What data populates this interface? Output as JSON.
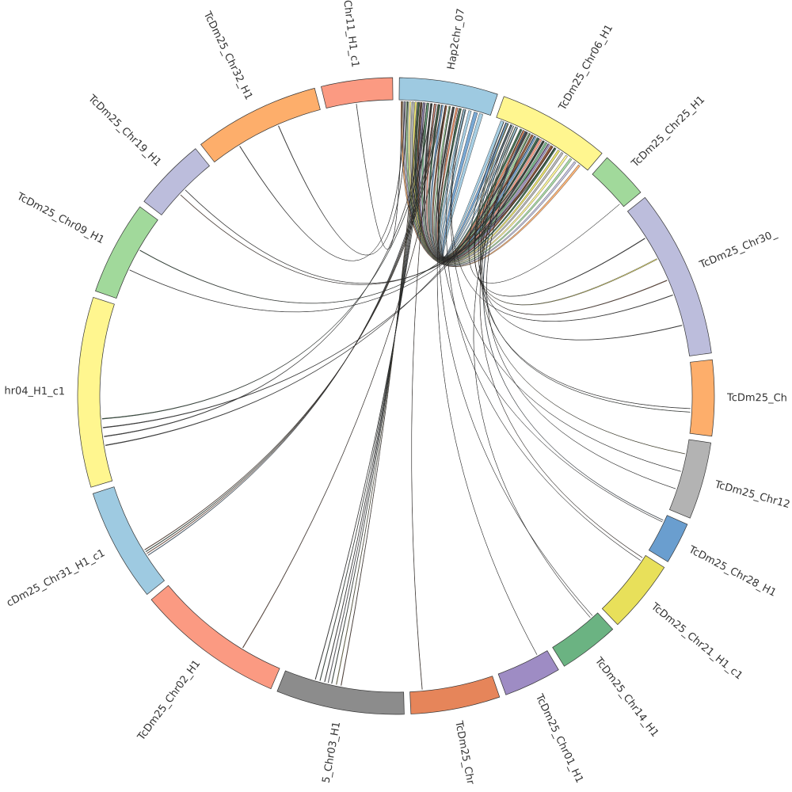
{
  "chart_data": {
    "type": "chord",
    "title": "",
    "sectors": [
      {
        "label": "Hap2chr_07",
        "length": 18,
        "color": "#9ecae1"
      },
      {
        "label": "TcDm25_Chr06_H1",
        "length": 20.5,
        "color": "#fff68f"
      },
      {
        "label": "TcDm25_Chr25_H1",
        "length": 8.7,
        "color": "#a1d99b"
      },
      {
        "label": "TcDm25_Chr30_",
        "length": 30.8,
        "color": "#bcbddc"
      },
      {
        "label": "TcDm25_Ch",
        "length": 13.8,
        "color": "#fdae6b"
      },
      {
        "label": "TcDm25_Chr12",
        "length": 14.1,
        "color": "#b3b3b3"
      },
      {
        "label": "TcDm25_Chr28_H1",
        "length": 7.6,
        "color": "#6a9ecf"
      },
      {
        "label": "TcDm25_Chr21_H1_c1",
        "length": 13.3,
        "color": "#e8e05a"
      },
      {
        "label": "TcDm25_Chr14_H1",
        "length": 11,
        "color": "#6bb382"
      },
      {
        "label": "TcDm25_Chr01_H1",
        "length": 10.5,
        "color": "#9e8cc4"
      },
      {
        "label": "TcDm25_Chr",
        "length": 16.3,
        "color": "#e6855a"
      },
      {
        "label": "5_Chr03_H1",
        "length": 23.4,
        "color": "#8c8c8c"
      },
      {
        "label": "TcDm25_Chr02_H1",
        "length": 27.1,
        "color": "#fb9a82"
      },
      {
        "label": "cDm25_Chr31_H1_c1",
        "length": 20.7,
        "color": "#9ecae1"
      },
      {
        "label": "hr04_H1_c1",
        "length": 34.7,
        "color": "#fff68f"
      },
      {
        "label": "TcDm25_Chr09_H1",
        "length": 17.2,
        "color": "#a1d99b"
      },
      {
        "label": "TcDm25_Chr19_H1",
        "length": 13.3,
        "color": "#bcbddc"
      },
      {
        "label": "TcDm25_Chr32_H1",
        "length": 23,
        "color": "#fdae6b"
      },
      {
        "label": "Chr11_H1_c1",
        "length": 13,
        "color": "#fb9a82"
      }
    ],
    "link_colors": [
      "#9ecae1",
      "#fff68f",
      "#a1d99b",
      "#bcbddc",
      "#fdae6b",
      "#b3b3b3",
      "#6a9ecf",
      "#e8e05a",
      "#6bb382",
      "#9e8cc4",
      "#e6855a",
      "#8c8c8c",
      "#fb9a82",
      "#2f5f3f",
      "#8b4a2a",
      "#333333"
    ],
    "links_format": [
      "source_sector",
      "source_pos",
      "source_width",
      "target_sector",
      "target_pos",
      "target_width",
      "color_index"
    ],
    "links": [
      [
        0,
        0.02,
        0.02,
        1,
        0.9,
        0.02,
        4
      ],
      [
        0,
        0.05,
        0.02,
        1,
        0.85,
        0.02,
        3
      ],
      [
        0,
        0.08,
        0.02,
        1,
        0.8,
        0.02,
        2
      ],
      [
        0,
        0.11,
        0.02,
        1,
        0.75,
        0.02,
        1
      ],
      [
        0,
        0.14,
        0.02,
        1,
        0.7,
        0.02,
        5
      ],
      [
        0,
        0.17,
        0.02,
        1,
        0.66,
        0.02,
        7
      ],
      [
        0,
        0.2,
        0.02,
        1,
        0.62,
        0.02,
        13
      ],
      [
        0,
        0.23,
        0.02,
        1,
        0.58,
        0.02,
        14
      ],
      [
        0,
        0.26,
        0.02,
        1,
        0.55,
        0.02,
        9
      ],
      [
        0,
        0.3,
        0.02,
        1,
        0.52,
        0.02,
        8
      ],
      [
        0,
        0.34,
        0.02,
        1,
        0.49,
        0.02,
        15
      ],
      [
        0,
        0.38,
        0.02,
        1,
        0.46,
        0.02,
        12
      ],
      [
        0,
        0.42,
        0.02,
        1,
        0.43,
        0.02,
        13
      ],
      [
        0,
        0.46,
        0.02,
        1,
        0.4,
        0.02,
        6
      ],
      [
        0,
        0.5,
        0.02,
        1,
        0.37,
        0.02,
        14
      ],
      [
        0,
        0.54,
        0.02,
        1,
        0.34,
        0.02,
        2
      ],
      [
        0,
        0.58,
        0.02,
        1,
        0.31,
        0.02,
        15
      ],
      [
        0,
        0.62,
        0.02,
        1,
        0.28,
        0.02,
        10
      ],
      [
        0,
        0.66,
        0.02,
        1,
        0.25,
        0.02,
        13
      ],
      [
        0,
        0.7,
        0.03,
        1,
        0.2,
        0.02,
        0
      ],
      [
        0,
        0.76,
        0.03,
        1,
        0.15,
        0.02,
        0
      ],
      [
        0,
        0.82,
        0.04,
        1,
        0.1,
        0.03,
        6
      ],
      [
        0,
        0.88,
        0.04,
        1,
        0.05,
        0.03,
        0
      ],
      [
        18,
        0.45,
        0.004,
        0,
        0.03,
        0.004,
        15
      ],
      [
        17,
        0.25,
        0.004,
        0,
        0.06,
        0.004,
        15
      ],
      [
        17,
        0.62,
        0.004,
        0,
        0.09,
        0.004,
        15
      ],
      [
        16,
        0.4,
        0.006,
        1,
        0.6,
        0.006,
        14
      ],
      [
        16,
        0.5,
        0.006,
        1,
        0.62,
        0.006,
        15
      ],
      [
        15,
        0.35,
        0.004,
        1,
        0.55,
        0.004,
        15
      ],
      [
        15,
        0.6,
        0.006,
        1,
        0.5,
        0.006,
        13
      ],
      [
        14,
        0.2,
        0.004,
        1,
        0.4,
        0.004,
        15
      ],
      [
        14,
        0.25,
        0.004,
        0,
        0.3,
        0.004,
        15
      ],
      [
        14,
        0.3,
        0.004,
        1,
        0.45,
        0.004,
        15
      ],
      [
        14,
        0.35,
        0.004,
        0,
        0.35,
        0.004,
        13
      ],
      [
        13,
        0.28,
        0.005,
        0,
        0.4,
        0.005,
        6
      ],
      [
        13,
        0.3,
        0.005,
        0,
        0.42,
        0.005,
        10
      ],
      [
        13,
        0.32,
        0.005,
        0,
        0.44,
        0.005,
        13
      ],
      [
        13,
        0.34,
        0.005,
        0,
        0.46,
        0.005,
        14
      ],
      [
        12,
        0.3,
        0.004,
        0,
        0.5,
        0.004,
        14
      ],
      [
        11,
        0.52,
        0.004,
        0,
        0.2,
        0.004,
        14
      ],
      [
        11,
        0.56,
        0.004,
        0,
        0.22,
        0.004,
        7
      ],
      [
        11,
        0.6,
        0.004,
        0,
        0.24,
        0.004,
        13
      ],
      [
        11,
        0.63,
        0.004,
        0,
        0.26,
        0.004,
        3
      ],
      [
        11,
        0.66,
        0.004,
        0,
        0.28,
        0.004,
        15
      ],
      [
        11,
        0.7,
        0.004,
        0,
        0.3,
        0.004,
        13
      ],
      [
        11,
        0.74,
        0.004,
        0,
        0.32,
        0.004,
        15
      ],
      [
        10,
        0.85,
        0.004,
        0,
        0.38,
        0.004,
        14
      ],
      [
        9,
        0.2,
        0.003,
        0,
        0.6,
        0.003,
        15
      ],
      [
        8,
        0.1,
        0.003,
        0,
        0.55,
        0.003,
        15
      ],
      [
        8,
        0.15,
        0.003,
        1,
        0.3,
        0.003,
        15
      ],
      [
        7,
        0.05,
        0.004,
        1,
        0.28,
        0.004,
        14
      ],
      [
        7,
        0.1,
        0.003,
        0,
        0.65,
        0.003,
        15
      ],
      [
        6,
        0.15,
        0.008,
        1,
        0.3,
        0.008,
        6
      ],
      [
        6,
        0.2,
        0.004,
        0,
        0.5,
        0.004,
        15
      ],
      [
        5,
        0.2,
        0.004,
        1,
        0.2,
        0.004,
        7
      ],
      [
        5,
        0.45,
        0.003,
        0,
        0.7,
        0.003,
        15
      ],
      [
        5,
        0.7,
        0.003,
        1,
        0.35,
        0.003,
        15
      ],
      [
        4,
        0.65,
        0.004,
        1,
        0.18,
        0.004,
        15
      ],
      [
        4,
        0.7,
        0.004,
        1,
        0.22,
        0.004,
        13
      ],
      [
        3,
        0.2,
        0.004,
        1,
        0.15,
        0.004,
        15
      ],
      [
        3,
        0.35,
        0.006,
        1,
        0.12,
        0.006,
        7
      ],
      [
        3,
        0.5,
        0.004,
        1,
        0.1,
        0.004,
        14
      ],
      [
        3,
        0.6,
        0.003,
        0,
        0.72,
        0.003,
        15
      ],
      [
        3,
        0.8,
        0.003,
        1,
        0.16,
        0.003,
        15
      ],
      [
        2,
        0.9,
        0.003,
        1,
        0.08,
        0.003,
        13
      ]
    ]
  }
}
